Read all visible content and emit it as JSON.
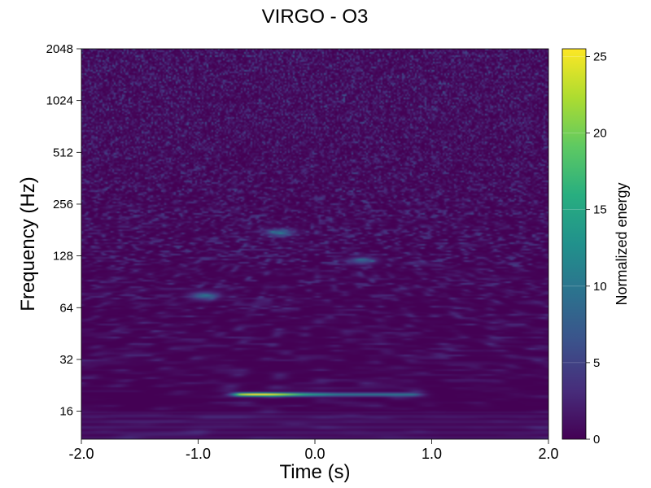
{
  "chart_data": {
    "type": "heatmap",
    "title": "VIRGO - O3",
    "xlabel": "Time (s)",
    "ylabel": "Frequency (Hz)",
    "x_ticks": [
      -2.0,
      -1.0,
      0.0,
      1.0,
      2.0
    ],
    "x_tick_labels": [
      "-2.0",
      "-1.0",
      "0.0",
      "1.0",
      "2.0"
    ],
    "xlim": [
      -2.0,
      2.0
    ],
    "y_scale": "log2",
    "y_ticks": [
      16,
      32,
      64,
      128,
      256,
      512,
      1024,
      2048
    ],
    "y_tick_labels": [
      "16",
      "32",
      "64",
      "128",
      "256",
      "512",
      "1024",
      "2048"
    ],
    "ylim": [
      11,
      2048
    ],
    "colormap": "viridis",
    "colorbar": {
      "label": "Normalized energy",
      "range": [
        0,
        25.5
      ],
      "ticks": [
        0,
        5,
        10,
        15,
        20,
        25
      ],
      "tick_labels": [
        "0",
        "5",
        "10",
        "15",
        "20",
        "25"
      ]
    },
    "features": [
      {
        "description": "bright narrow horizontal band",
        "time_range": [
          -0.75,
          0.95
        ],
        "frequency_hz": 20,
        "peak_energy": 25.5,
        "peak_time": -0.45
      },
      {
        "description": "faint blob",
        "time": -0.95,
        "frequency_hz": 75,
        "energy": 12
      },
      {
        "description": "faint blob",
        "time": 0.4,
        "frequency_hz": 120,
        "energy": 10
      },
      {
        "description": "faint blob",
        "time": -0.3,
        "frequency_hz": 175,
        "energy": 12
      }
    ],
    "grid": false
  },
  "colors": {
    "background_min": "#440154",
    "mid": "#21918c",
    "high": "#fde725"
  }
}
